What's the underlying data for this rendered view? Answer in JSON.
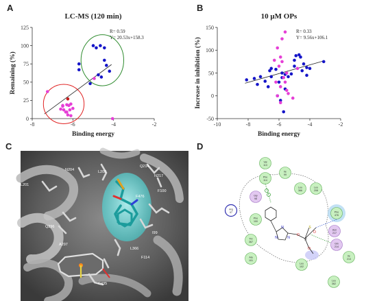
{
  "panels": {
    "a": {
      "letter": "A"
    },
    "b": {
      "letter": "B"
    },
    "c": {
      "letter": "C"
    },
    "d": {
      "letter": "D"
    }
  },
  "chart_data": [
    {
      "type": "scatter",
      "id": "A",
      "title": "LC-MS (120 min)",
      "xlabel": "Binding energy",
      "ylabel": "Remaining (%)",
      "xlim": [
        -8,
        -2
      ],
      "ylim": [
        0,
        125
      ],
      "xticks": [
        -8,
        -6,
        -4,
        -2
      ],
      "yticks": [
        0,
        25,
        50,
        75,
        100,
        125
      ],
      "grid": false,
      "annotations": [
        "R= 0.59",
        "Y= 20.53x+158.3"
      ],
      "regression": {
        "slope": 20.53,
        "intercept": 158.3,
        "x_from": -7.4,
        "x_to": -4.1
      },
      "colors": {
        "blue": "#1515c8",
        "magenta": "#e63fd6",
        "red": "#c81e1e"
      },
      "series": [
        {
          "color": "blue",
          "x": [
            -5.7,
            -5.7,
            -5.0,
            -4.85,
            -4.65,
            -4.45,
            -4.45,
            -4.35,
            -4.2,
            -4.6,
            -4.75,
            -5.15
          ],
          "y": [
            75,
            67,
            100,
            97,
            100,
            97,
            80,
            73,
            65,
            57,
            60,
            48
          ]
        },
        {
          "color": "magenta",
          "x": [
            -7.25,
            -6.5,
            -6.3,
            -6.2,
            -6.1,
            -6.0,
            -6.45,
            -6.35,
            -6.15,
            -6.25,
            -6.5,
            -6.1,
            -6.3,
            -6.6,
            -4.95,
            -4.05
          ],
          "y": [
            37,
            18,
            19,
            18,
            20,
            14,
            12,
            9,
            12,
            5,
            17,
            4,
            9,
            13,
            55,
            0
          ]
        },
        {
          "color": "red",
          "x": [
            -6.25
          ],
          "y": [
            27
          ]
        }
      ],
      "ellipses": [
        {
          "color": "red",
          "cx": -6.45,
          "cy": 20,
          "rx": 1.0,
          "ry": 27
        },
        {
          "color": "green",
          "cx": -4.55,
          "cy": 80,
          "rx": 1.05,
          "ry": 35
        }
      ]
    },
    {
      "type": "scatter",
      "id": "B",
      "title": "10 μM OPs",
      "xlabel": "Binding energy",
      "ylabel": "Increase in inhibition (%)",
      "xlim": [
        -10,
        -2
      ],
      "ylim": [
        -50,
        150
      ],
      "xticks": [
        -10,
        -8,
        -6,
        -4,
        -2
      ],
      "yticks": [
        -50,
        0,
        50,
        100,
        150
      ],
      "grid": false,
      "annotations": [
        "R= 0.33",
        "Y= 9.56x+106.1"
      ],
      "regression": {
        "slope": 9.56,
        "intercept": 106.1,
        "x_from": -8.2,
        "x_to": -3.1
      },
      "colors": {
        "blue": "#1515c8",
        "magenta": "#e63fd6"
      },
      "series": [
        {
          "color": "blue",
          "x": [
            -8.1,
            -7.6,
            -7.2,
            -6.9,
            -6.7,
            -6.6,
            -6.2,
            -5.8,
            -5.6,
            -5.6,
            -5.4,
            -5.2,
            -5.0,
            -4.9,
            -4.7,
            -4.6,
            -4.4,
            -4.2,
            -4.0,
            -3.1,
            -6.1,
            -5.9,
            -7.4,
            -6.5,
            -5.8,
            -5.0,
            -6.5,
            -4.5,
            -4.2,
            -6.0,
            -5.7
          ],
          "y": [
            35,
            38,
            42,
            32,
            20,
            55,
            58,
            50,
            47,
            15,
            42,
            48,
            65,
            88,
            90,
            85,
            70,
            45,
            60,
            75,
            0,
            -10,
            25,
            60,
            40,
            78,
            42,
            55,
            62,
            30,
            -35
          ]
        },
        {
          "color": "magenta",
          "x": [
            -6.1,
            -5.8,
            -5.6,
            -5.9,
            -6.3,
            -6.0,
            -5.7,
            -6.2,
            -5.9,
            -5.5,
            -5.4,
            -5.1,
            -4.8,
            -5.6,
            -6.1,
            -5.5,
            -5.8,
            -5.9
          ],
          "y": [
            105,
            125,
            140,
            85,
            78,
            65,
            40,
            30,
            20,
            12,
            5,
            -5,
            60,
            30,
            0,
            50,
            75,
            -15
          ]
        }
      ]
    }
  ],
  "structure": {
    "residues": [
      "L208",
      "N204",
      "Q214",
      "N217",
      "L201",
      "F100",
      "F476",
      "Q296",
      "I99",
      "A297",
      "L366",
      "F114",
      "C435"
    ]
  },
  "interaction_map": {
    "residues": [
      {
        "name": "Val",
        "num": "113"
      },
      {
        "name": "Phe",
        "num": "114"
      },
      {
        "name": "Ile",
        "num": "99"
      },
      {
        "name": "Leu",
        "num": "366"
      },
      {
        "name": "Leu",
        "num": "208"
      },
      {
        "name": "Gly",
        "num": "98"
      },
      {
        "name": "Arg",
        "num": "97"
      },
      {
        "name": "Phe",
        "num": "100"
      },
      {
        "name": "Phe",
        "num": "476"
      },
      {
        "name": "Asn",
        "num": "217"
      },
      {
        "name": "Gln",
        "num": "214"
      },
      {
        "name": "Thr",
        "num": "367"
      },
      {
        "name": "Ala",
        "num": "101"
      },
      {
        "name": "Leu",
        "num": "102"
      },
      {
        "name": "Ile",
        "num": "213"
      },
      {
        "name": "Leu",
        "num": "362"
      }
    ],
    "ligand_atoms": [
      "N",
      "N",
      "N",
      "O",
      "P",
      "S",
      "O",
      "O"
    ]
  }
}
